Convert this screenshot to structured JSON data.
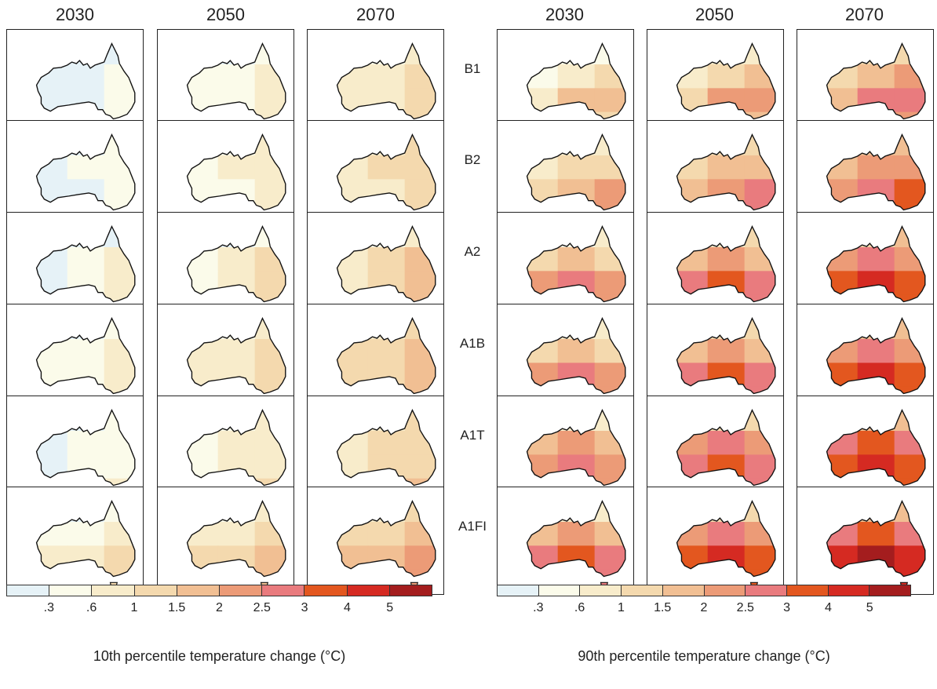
{
  "left": {
    "years": [
      "2030",
      "2050",
      "2070"
    ],
    "legend_title": "10th percentile temperature change (°C)"
  },
  "right": {
    "years": [
      "2030",
      "2050",
      "2070"
    ],
    "legend_title": "90th percentile temperature change (°C)"
  },
  "scenarios": [
    "B1",
    "B2",
    "A2",
    "A1B",
    "A1T",
    "A1FI"
  ],
  "legend": {
    "tick_labels": [
      ".3",
      ".6",
      "1",
      "1.5",
      "2",
      "2.5",
      "3",
      "4",
      "5"
    ],
    "colors": [
      "#e6f2f7",
      "#fbfbea",
      "#f8eccb",
      "#f4d9ae",
      "#f1bf93",
      "#ec9b77",
      "#e97b7e",
      "#e3571f",
      "#d52a22",
      "#a41d1e"
    ]
  },
  "maps": {
    "left": [
      [
        [
          1,
          1,
          2
        ],
        [
          2,
          2,
          3
        ],
        [
          2,
          2,
          3
        ],
        [
          2,
          2,
          3
        ]
      ],
      [
        [
          2,
          2,
          3
        ],
        [
          2,
          3,
          3
        ],
        [
          2,
          2,
          3
        ],
        [
          2,
          2,
          3
        ]
      ],
      [
        [
          1,
          1,
          2
        ],
        [
          2,
          3,
          4
        ],
        [
          2,
          3,
          4
        ],
        [
          3,
          3,
          4
        ]
      ],
      [
        [
          2,
          2,
          3
        ],
        [
          3,
          3,
          4
        ],
        [
          3,
          3,
          4
        ],
        [
          3,
          3,
          4
        ]
      ],
      [
        [
          2,
          2,
          3
        ],
        [
          2,
          3,
          3
        ],
        [
          2,
          3,
          3
        ],
        [
          3,
          3,
          4
        ]
      ],
      [
        [
          2,
          2,
          3
        ],
        [
          3,
          3,
          4
        ],
        [
          4,
          4,
          5
        ],
        [
          4,
          4,
          5
        ]
      ]
    ],
    "right": [
      [
        [
          3,
          3,
          3
        ],
        [
          3,
          4,
          5
        ],
        [
          4,
          6,
          6
        ],
        [
          4,
          5,
          5
        ]
      ],
      [
        [
          3,
          4,
          4
        ],
        [
          4,
          5,
          5
        ],
        [
          5,
          6,
          7
        ],
        [
          5,
          6,
          7
        ]
      ],
      [
        [
          3,
          3,
          4
        ],
        [
          5,
          6,
          5
        ],
        [
          7,
          8,
          7
        ],
        [
          7,
          7,
          7
        ]
      ],
      [
        [
          3,
          4,
          4
        ],
        [
          5,
          6,
          5
        ],
        [
          7,
          8,
          7
        ],
        [
          7,
          7,
          7
        ]
      ],
      [
        [
          3,
          4,
          4
        ],
        [
          6,
          7,
          6
        ],
        [
          7,
          8,
          7
        ],
        [
          7,
          7,
          7
        ]
      ],
      [
        [
          3,
          4,
          4
        ],
        [
          6,
          7,
          6
        ],
        [
          8,
          9,
          8
        ],
        [
          7,
          8,
          8
        ]
      ]
    ]
  }
}
